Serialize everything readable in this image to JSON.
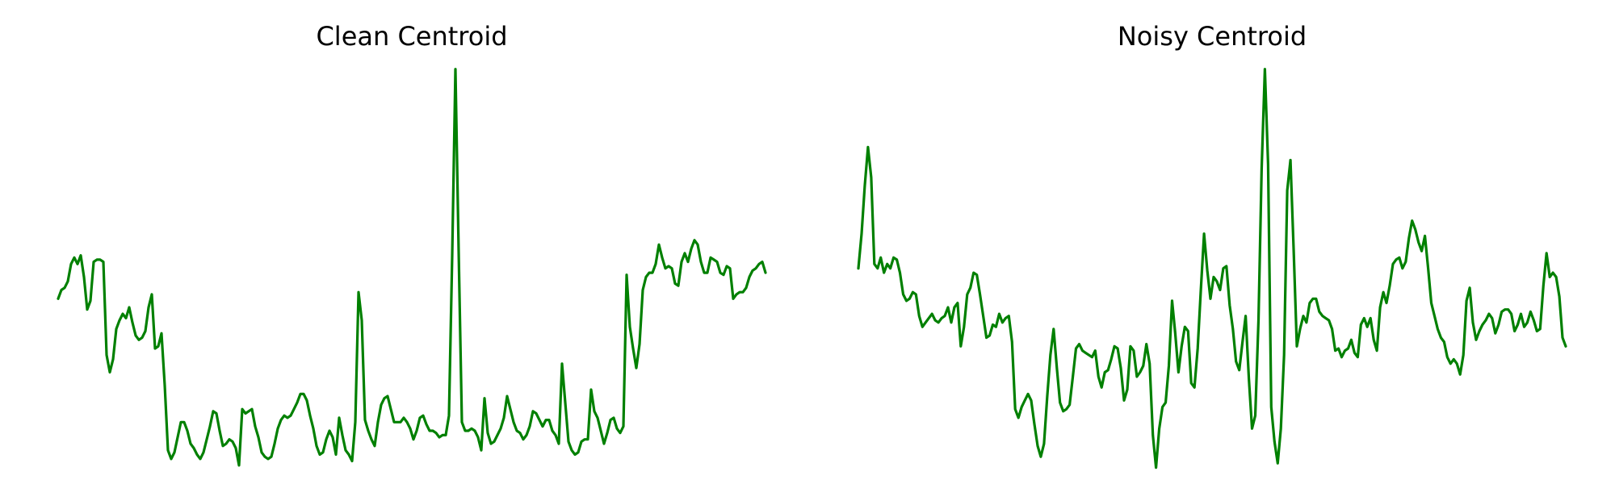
{
  "colors": {
    "series": "#008000",
    "background": "#ffffff"
  },
  "chart_data": [
    {
      "type": "line",
      "title": "Clean Centroid",
      "axes_visible": false,
      "grid": false,
      "ylim": [
        0.05,
        1.0
      ],
      "series": [
        {
          "values": [
            0.45,
            0.47,
            0.475,
            0.49,
            0.53,
            0.545,
            0.53,
            0.55,
            0.5,
            0.425,
            0.445,
            0.535,
            0.54,
            0.54,
            0.535,
            0.32,
            0.28,
            0.31,
            0.38,
            0.4,
            0.415,
            0.405,
            0.43,
            0.395,
            0.365,
            0.355,
            0.36,
            0.375,
            0.43,
            0.46,
            0.335,
            0.34,
            0.37,
            0.25,
            0.1,
            0.08,
            0.095,
            0.13,
            0.165,
            0.165,
            0.145,
            0.115,
            0.105,
            0.09,
            0.08,
            0.095,
            0.125,
            0.155,
            0.19,
            0.185,
            0.145,
            0.11,
            0.115,
            0.125,
            0.12,
            0.105,
            0.065,
            0.195,
            0.185,
            0.19,
            0.195,
            0.155,
            0.13,
            0.095,
            0.085,
            0.08,
            0.085,
            0.115,
            0.15,
            0.17,
            0.18,
            0.175,
            0.18,
            0.195,
            0.21,
            0.23,
            0.23,
            0.215,
            0.18,
            0.15,
            0.11,
            0.09,
            0.095,
            0.125,
            0.145,
            0.13,
            0.09,
            0.175,
            0.135,
            0.1,
            0.09,
            0.075,
            0.165,
            0.465,
            0.4,
            0.17,
            0.145,
            0.125,
            0.11,
            0.165,
            0.205,
            0.22,
            0.225,
            0.195,
            0.165,
            0.165,
            0.165,
            0.175,
            0.165,
            0.15,
            0.125,
            0.145,
            0.175,
            0.18,
            0.16,
            0.145,
            0.145,
            0.14,
            0.13,
            0.135,
            0.135,
            0.18,
            0.55,
            0.98,
            0.56,
            0.165,
            0.145,
            0.145,
            0.15,
            0.145,
            0.13,
            0.1,
            0.22,
            0.14,
            0.115,
            0.12,
            0.135,
            0.15,
            0.175,
            0.225,
            0.195,
            0.165,
            0.145,
            0.14,
            0.125,
            0.135,
            0.155,
            0.19,
            0.185,
            0.17,
            0.155,
            0.17,
            0.17,
            0.145,
            0.135,
            0.115,
            0.3,
            0.21,
            0.12,
            0.1,
            0.09,
            0.095,
            0.12,
            0.125,
            0.125,
            0.24,
            0.19,
            0.175,
            0.145,
            0.115,
            0.14,
            0.17,
            0.175,
            0.15,
            0.14,
            0.155,
            0.505,
            0.385,
            0.335,
            0.29,
            0.345,
            0.47,
            0.5,
            0.51,
            0.51,
            0.53,
            0.575,
            0.545,
            0.52,
            0.525,
            0.52,
            0.485,
            0.48,
            0.535,
            0.555,
            0.535,
            0.565,
            0.585,
            0.575,
            0.535,
            0.51,
            0.51,
            0.545,
            0.54,
            0.535,
            0.51,
            0.505,
            0.525,
            0.52,
            0.45,
            0.46,
            0.465,
            0.465,
            0.475,
            0.5,
            0.515,
            0.52,
            0.53,
            0.535,
            0.51
          ]
        }
      ]
    },
    {
      "type": "line",
      "title": "Noisy Centroid",
      "axes_visible": false,
      "grid": false,
      "ylim": [
        0.05,
        1.0
      ],
      "series": [
        {
          "values": [
            0.52,
            0.6,
            0.71,
            0.8,
            0.73,
            0.53,
            0.52,
            0.545,
            0.51,
            0.53,
            0.52,
            0.545,
            0.54,
            0.51,
            0.46,
            0.445,
            0.45,
            0.465,
            0.46,
            0.41,
            0.385,
            0.395,
            0.405,
            0.415,
            0.4,
            0.395,
            0.405,
            0.41,
            0.43,
            0.395,
            0.43,
            0.44,
            0.34,
            0.385,
            0.46,
            0.475,
            0.51,
            0.505,
            0.46,
            0.41,
            0.36,
            0.365,
            0.39,
            0.385,
            0.415,
            0.395,
            0.405,
            0.41,
            0.35,
            0.195,
            0.175,
            0.2,
            0.215,
            0.23,
            0.215,
            0.16,
            0.11,
            0.085,
            0.115,
            0.225,
            0.32,
            0.38,
            0.29,
            0.21,
            0.19,
            0.195,
            0.205,
            0.27,
            0.335,
            0.345,
            0.33,
            0.325,
            0.32,
            0.315,
            0.33,
            0.27,
            0.245,
            0.28,
            0.285,
            0.31,
            0.34,
            0.335,
            0.29,
            0.215,
            0.24,
            0.34,
            0.33,
            0.27,
            0.28,
            0.295,
            0.345,
            0.3,
            0.135,
            0.06,
            0.15,
            0.2,
            0.21,
            0.295,
            0.445,
            0.37,
            0.28,
            0.34,
            0.385,
            0.375,
            0.255,
            0.245,
            0.335,
            0.47,
            0.6,
            0.515,
            0.45,
            0.5,
            0.49,
            0.47,
            0.52,
            0.525,
            0.435,
            0.38,
            0.305,
            0.285,
            0.35,
            0.41,
            0.265,
            0.15,
            0.18,
            0.4,
            0.75,
            0.98,
            0.76,
            0.2,
            0.12,
            0.07,
            0.15,
            0.32,
            0.7,
            0.77,
            0.56,
            0.34,
            0.38,
            0.41,
            0.395,
            0.44,
            0.45,
            0.45,
            0.42,
            0.41,
            0.405,
            0.4,
            0.38,
            0.33,
            0.335,
            0.315,
            0.33,
            0.335,
            0.355,
            0.325,
            0.315,
            0.39,
            0.405,
            0.385,
            0.405,
            0.355,
            0.33,
            0.43,
            0.465,
            0.44,
            0.48,
            0.53,
            0.54,
            0.545,
            0.52,
            0.535,
            0.59,
            0.63,
            0.61,
            0.58,
            0.56,
            0.595,
            0.52,
            0.44,
            0.41,
            0.38,
            0.36,
            0.35,
            0.315,
            0.3,
            0.31,
            0.3,
            0.275,
            0.32,
            0.445,
            0.475,
            0.395,
            0.355,
            0.375,
            0.39,
            0.4,
            0.415,
            0.405,
            0.37,
            0.39,
            0.42,
            0.425,
            0.425,
            0.415,
            0.375,
            0.39,
            0.415,
            0.385,
            0.395,
            0.42,
            0.4,
            0.375,
            0.38,
            0.48,
            0.555,
            0.5,
            0.51,
            0.5,
            0.455,
            0.36,
            0.34
          ]
        }
      ]
    }
  ]
}
